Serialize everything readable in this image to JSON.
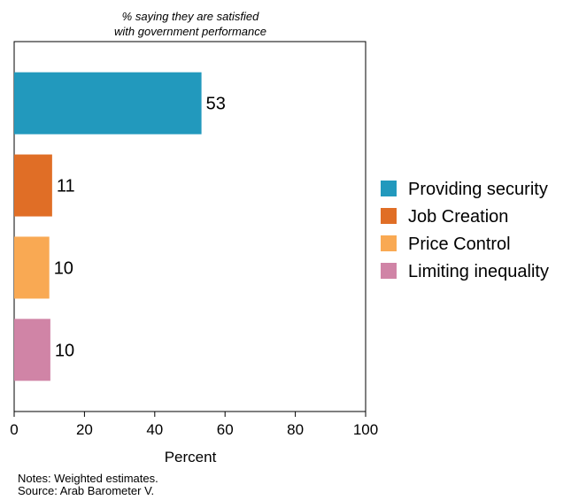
{
  "chart_data": {
    "type": "bar",
    "orientation": "horizontal",
    "title_lines": [
      "% saying they are satisfied",
      "with government performance"
    ],
    "categories": [
      "Providing security",
      "Job Creation",
      "Price Control",
      "Limiting inequality"
    ],
    "values": [
      53.3,
      10.8,
      10.0,
      10.3
    ],
    "data_labels": [
      "53",
      "11",
      "10",
      "10"
    ],
    "colors": [
      "#2299BD",
      "#E06E26",
      "#F9A953",
      "#D084A6"
    ],
    "xlabel": "Percent",
    "ylabel": "",
    "xlim": [
      0,
      100
    ],
    "xticks": [
      0,
      20,
      40,
      60,
      80,
      100
    ],
    "grid": false,
    "legend_position": "right"
  },
  "notes": [
    "Notes: Weighted estimates.",
    "Source: Arab Barometer V."
  ]
}
